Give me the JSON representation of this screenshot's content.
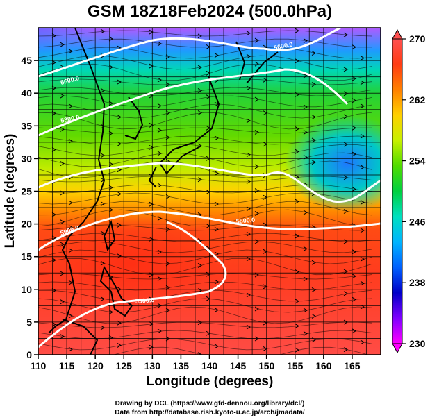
{
  "title": "GSM 18Z18Feb2024 (500.0hPa)",
  "xlabel": "Longitude (degrees)",
  "ylabel": "Latitude  (degrees)",
  "xticks": [
    "110",
    "115",
    "120",
    "125",
    "130",
    "135",
    "140",
    "145",
    "150",
    "155",
    "160",
    "165"
  ],
  "yticks": [
    "0",
    "5",
    "10",
    "15",
    "20",
    "25",
    "30",
    "35",
    "40",
    "45"
  ],
  "colorbar": {
    "ticks": [
      "230",
      "238",
      "246",
      "254",
      "262",
      "270"
    ],
    "min": 230,
    "max": 270,
    "colors": [
      "#ff00ff",
      "#8000ff",
      "#0000c8",
      "#0060ff",
      "#00b4ff",
      "#00e0c0",
      "#00d040",
      "#50dc00",
      "#c8f000",
      "#ffd000",
      "#ff8000",
      "#ff3c14",
      "#ff5050"
    ]
  },
  "credits": [
    "Drawing by DCL (https://www.gfd-dennou.org/library/dcl/)",
    "Data from http://database.rish.kyoto-u.ac.jp/arch/jmadata/"
  ],
  "map": {
    "lon_range": [
      110,
      170
    ],
    "lat_range": [
      0,
      50
    ],
    "variable_colors": "temperature (K)",
    "contour_labels": [
      "5600.0",
      "5600.0",
      "5800.0",
      "5800.0",
      "5900.0",
      "5900.0"
    ]
  },
  "chart_data": {
    "type": "heatmap",
    "title": "GSM 18Z18Feb2024 (500.0hPa)",
    "xlabel": "Longitude (degrees)",
    "ylabel": "Latitude  (degrees)",
    "xlim": [
      110,
      170
    ],
    "ylim": [
      0,
      50
    ],
    "colorbar_range": [
      230,
      270
    ],
    "colorbar_ticks": [
      230,
      238,
      246,
      254,
      262,
      270
    ],
    "contour_levels": [
      5600,
      5800,
      5900
    ]
  }
}
